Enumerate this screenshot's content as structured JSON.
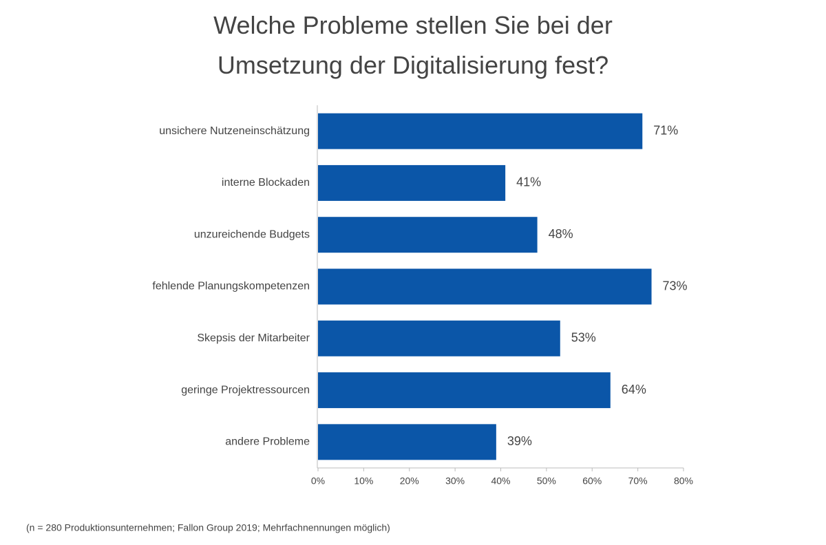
{
  "chart_data": {
    "type": "hbar",
    "title": "Welche Probleme stellen Sie bei der Umsetzung der Digitalisierung fest?",
    "categories": [
      "unsichere Nutzeneinschätzung",
      "interne Blockaden",
      "unzureichende Budgets",
      "fehlende Planungskompetenzen",
      "Skepsis der Mitarbeiter",
      "geringe Projektressourcen",
      "andere Probleme"
    ],
    "values": [
      71,
      41,
      48,
      73,
      53,
      64,
      39
    ],
    "value_labels": [
      "71%",
      "41%",
      "48%",
      "73%",
      "53%",
      "64%",
      "39%"
    ],
    "color": "#0b56a8",
    "xlim": [
      0,
      80
    ],
    "xticks": [
      {
        "value": 0,
        "label": "0%"
      },
      {
        "value": 10,
        "label": "10%"
      },
      {
        "value": 20,
        "label": "20%"
      },
      {
        "value": 30,
        "label": "30%"
      },
      {
        "value": 40,
        "label": "40%"
      },
      {
        "value": 50,
        "label": "50%"
      },
      {
        "value": 60,
        "label": "60%"
      },
      {
        "value": 70,
        "label": "70%"
      },
      {
        "value": 80,
        "label": "80%"
      }
    ],
    "note": "(n = 280 Produktionsunternehmen; Fallon Group 2019; Mehrfachnennungen möglich)"
  }
}
